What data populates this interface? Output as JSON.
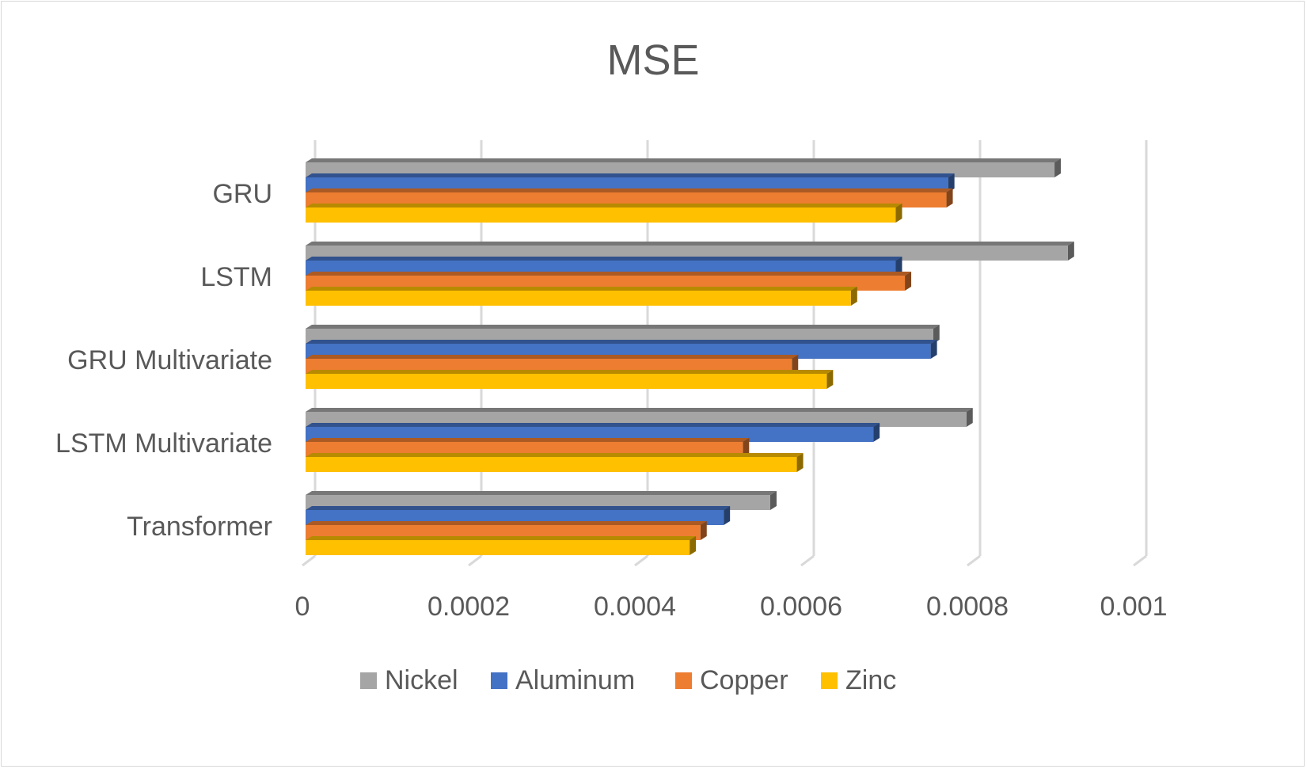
{
  "chart_data": {
    "type": "bar",
    "orientation": "horizontal",
    "style": "3d",
    "title": "MSE",
    "categories": [
      "GRU",
      "LSTM",
      "GRU Multivariate",
      "LSTM Multivariate",
      "Transformer"
    ],
    "series": [
      {
        "name": "Nickel",
        "color": "#a5a5a5",
        "values": [
          0.000901,
          0.000917,
          0.000755,
          0.000795,
          0.000559
        ]
      },
      {
        "name": "Aluminum",
        "color": "#4472c4",
        "values": [
          0.000773,
          0.00071,
          0.000752,
          0.000683,
          0.000503
        ]
      },
      {
        "name": "Copper",
        "color": "#ed7d31",
        "values": [
          0.000771,
          0.000721,
          0.000585,
          0.000526,
          0.000475
        ]
      },
      {
        "name": "Zinc",
        "color": "#ffc000",
        "values": [
          0.00071,
          0.000656,
          0.000627,
          0.000591,
          0.000462
        ]
      }
    ],
    "xlim": [
      0,
      0.001
    ],
    "ticks": [
      "0",
      "0.0002",
      "0.0004",
      "0.0006",
      "0.0008",
      "0.001"
    ],
    "tick_values": [
      0,
      0.0002,
      0.0004,
      0.0006,
      0.0008,
      0.001
    ],
    "grid": true,
    "legend": "bottom"
  }
}
